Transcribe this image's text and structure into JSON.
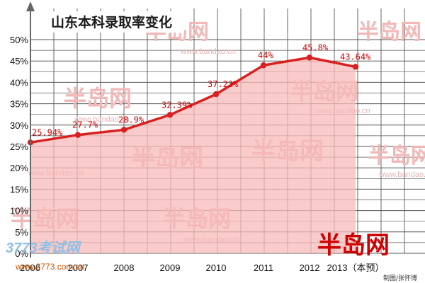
{
  "chart_data": {
    "type": "area",
    "title": "山东本科录取率变化",
    "categories": [
      "2006",
      "2007",
      "2008",
      "2009",
      "2010",
      "2011",
      "2012",
      "2013（本预）"
    ],
    "values": [
      25.94,
      27.7,
      28.9,
      32.39,
      37.23,
      44,
      45.8,
      43.64
    ],
    "data_labels": [
      "25.94%",
      "27.7%",
      "28.9%",
      "32.39%",
      "37.23%",
      "44%",
      "45.8%",
      "43.64%"
    ],
    "y_ticks": [
      "0%",
      "5%",
      "10%",
      "15%",
      "20%",
      "25%",
      "30%",
      "35%",
      "40%",
      "45%",
      "50%"
    ],
    "ylim": [
      0,
      50
    ],
    "grid": true,
    "colors": {
      "line": "#d92020",
      "area": "#f7b9b9",
      "grid": "#555555",
      "label": "#d40000",
      "background": "#ffffff"
    }
  },
  "watermarks": {
    "site_logo": "半岛网",
    "site_url": "www.bandao.cn",
    "corner_logo": "3773考试网",
    "corner_url": "www.3773.com.cn"
  },
  "credit": "制图/张怀博"
}
